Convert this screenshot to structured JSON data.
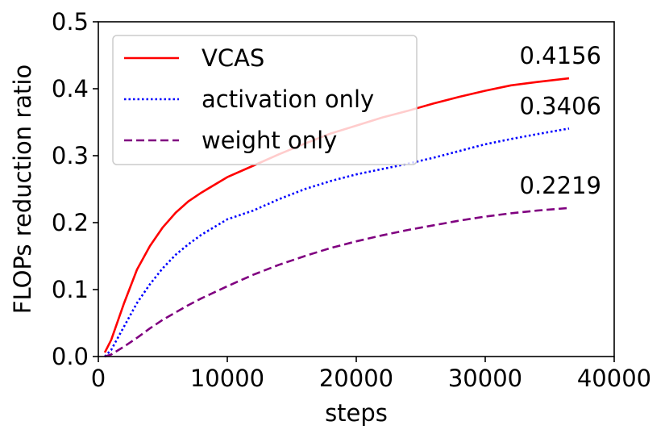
{
  "chart_data": {
    "type": "line",
    "xlabel": "steps",
    "ylabel": "FLOPs reduction ratio",
    "xlim": [
      0,
      40000
    ],
    "ylim": [
      0.0,
      0.5
    ],
    "x_ticks": [
      "0",
      "10000",
      "20000",
      "30000",
      "40000"
    ],
    "y_ticks": [
      "0.0",
      "0.1",
      "0.2",
      "0.3",
      "0.4",
      "0.5"
    ],
    "grid": false,
    "legend_position": "upper-left",
    "series": [
      {
        "name": "VCAS",
        "color": "#ff0000",
        "line_style": "solid",
        "end_label": "0.4156",
        "x": [
          500,
          1000,
          2000,
          3000,
          4000,
          5000,
          6000,
          7000,
          8000,
          10000,
          12000,
          14000,
          16000,
          18000,
          20000,
          22000,
          24000,
          26000,
          28000,
          30000,
          32000,
          34000,
          36500
        ],
        "y": [
          0.006,
          0.025,
          0.08,
          0.13,
          0.165,
          0.193,
          0.215,
          0.232,
          0.245,
          0.268,
          0.285,
          0.302,
          0.318,
          0.333,
          0.345,
          0.357,
          0.367,
          0.378,
          0.388,
          0.397,
          0.405,
          0.41,
          0.4156
        ]
      },
      {
        "name": "activation only",
        "color": "#0000ff",
        "line_style": "dotted",
        "end_label": "0.3406",
        "x": [
          500,
          1000,
          2000,
          3000,
          4000,
          5000,
          6000,
          7000,
          8000,
          10000,
          12000,
          14000,
          16000,
          18000,
          20000,
          22000,
          24000,
          26000,
          28000,
          30000,
          32000,
          34000,
          36500
        ],
        "y": [
          0.0,
          0.01,
          0.045,
          0.08,
          0.108,
          0.132,
          0.152,
          0.168,
          0.182,
          0.205,
          0.218,
          0.235,
          0.25,
          0.262,
          0.272,
          0.28,
          0.288,
          0.297,
          0.307,
          0.317,
          0.325,
          0.332,
          0.3406
        ]
      },
      {
        "name": "weight only",
        "color": "#800080",
        "line_style": "dashed",
        "end_label": "0.2219",
        "x": [
          500,
          1000,
          2000,
          3000,
          4000,
          5000,
          6000,
          7000,
          8000,
          10000,
          12000,
          14000,
          16000,
          18000,
          20000,
          22000,
          24000,
          26000,
          28000,
          30000,
          32000,
          34000,
          36500
        ],
        "y": [
          0.0,
          0.003,
          0.015,
          0.028,
          0.042,
          0.055,
          0.066,
          0.077,
          0.087,
          0.105,
          0.122,
          0.137,
          0.15,
          0.162,
          0.172,
          0.181,
          0.189,
          0.196,
          0.203,
          0.209,
          0.214,
          0.218,
          0.2219
        ]
      }
    ]
  }
}
